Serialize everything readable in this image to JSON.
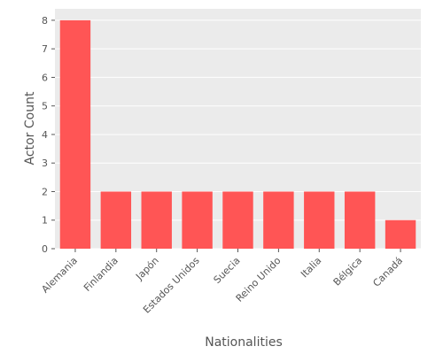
{
  "chart_data": {
    "type": "bar",
    "title": "",
    "xlabel": "Nationalities",
    "ylabel": "Actor Count",
    "categories": [
      "Alemania",
      "Finlandia",
      "Japón",
      "Estados Unidos",
      "Suecia",
      "Reino Unido",
      "Italia",
      "Bélgica",
      "Canadá"
    ],
    "values": [
      8,
      2,
      2,
      2,
      2,
      2,
      2,
      2,
      1
    ],
    "ylim": [
      0,
      8.4
    ],
    "yticks": [
      0,
      1,
      2,
      3,
      4,
      5,
      6,
      7,
      8
    ],
    "grid": true,
    "legend": "none",
    "colors": {
      "bar": "#ff5555",
      "plot_background": "#ebebeb",
      "grid": "#ffffff",
      "text": "#555555"
    }
  }
}
